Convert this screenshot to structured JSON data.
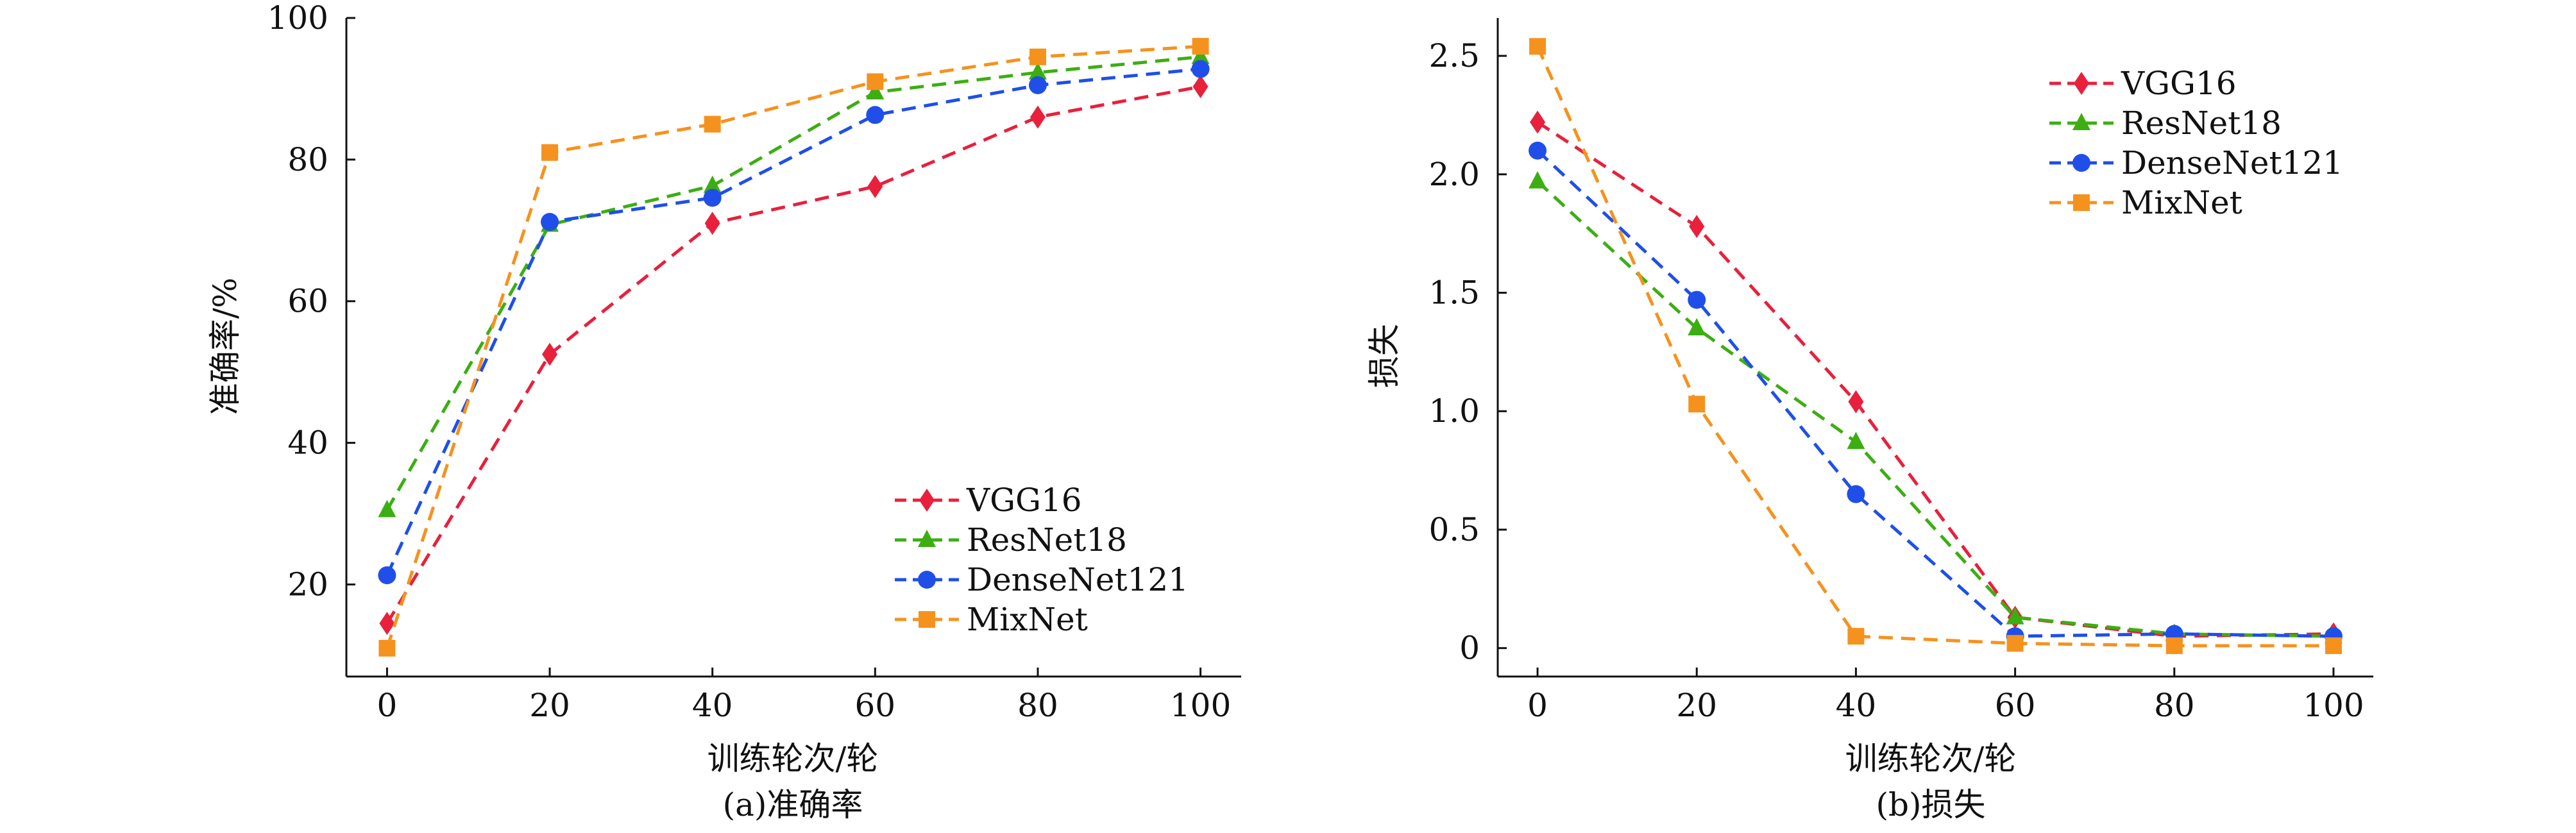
{
  "chart_data": [
    {
      "type": "line",
      "caption": "(a)准确率",
      "xlabel": "训练轮次/轮",
      "ylabel": "准确率/%",
      "x": [
        0,
        20,
        40,
        60,
        80,
        100
      ],
      "xlim": [
        -5,
        105
      ],
      "ylim": [
        7,
        100
      ],
      "xticks": [
        0,
        20,
        40,
        60,
        80,
        100
      ],
      "yticks": [
        20,
        40,
        60,
        80,
        100
      ],
      "legend_position": "lower-right",
      "series": [
        {
          "name": "VGG16",
          "color": "#e8203c",
          "marker": "diamond",
          "values": [
            14.5,
            52.5,
            71.0,
            76.2,
            86.0,
            90.3
          ]
        },
        {
          "name": "ResNet18",
          "color": "#3cae12",
          "marker": "triangle",
          "values": [
            30.5,
            70.8,
            76.3,
            89.5,
            92.3,
            94.5
          ]
        },
        {
          "name": "DenseNet121",
          "color": "#1f4fe8",
          "marker": "circle",
          "values": [
            21.3,
            71.2,
            74.6,
            86.3,
            90.5,
            92.8
          ]
        },
        {
          "name": "MixNet",
          "color": "#f5921e",
          "marker": "square",
          "values": [
            11.0,
            81.0,
            85.0,
            91.0,
            94.5,
            96.0
          ]
        }
      ]
    },
    {
      "type": "line",
      "caption": "(b)损失",
      "xlabel": "训练轮次/轮",
      "ylabel": "损失",
      "x": [
        0,
        20,
        40,
        60,
        80,
        100
      ],
      "xlim": [
        -5,
        105
      ],
      "ylim": [
        -0.12,
        2.66
      ],
      "xticks": [
        0,
        20,
        40,
        60,
        80,
        100
      ],
      "yticks": [
        0,
        0.5,
        1.0,
        1.5,
        2.0,
        2.5
      ],
      "ytick_labels": [
        "0",
        "0.5",
        "1.0",
        "1.5",
        "2.0",
        "2.5"
      ],
      "legend_position": "upper-right",
      "series": [
        {
          "name": "VGG16",
          "color": "#e8203c",
          "marker": "diamond",
          "values": [
            2.22,
            1.78,
            1.04,
            0.13,
            0.05,
            0.06
          ]
        },
        {
          "name": "ResNet18",
          "color": "#3cae12",
          "marker": "triangle",
          "values": [
            1.97,
            1.35,
            0.87,
            0.13,
            0.06,
            0.05
          ]
        },
        {
          "name": "DenseNet121",
          "color": "#1f4fe8",
          "marker": "circle",
          "values": [
            2.1,
            1.47,
            0.65,
            0.05,
            0.06,
            0.05
          ]
        },
        {
          "name": "MixNet",
          "color": "#f5921e",
          "marker": "square",
          "values": [
            2.54,
            1.03,
            0.05,
            0.02,
            0.01,
            0.01
          ]
        }
      ]
    }
  ]
}
